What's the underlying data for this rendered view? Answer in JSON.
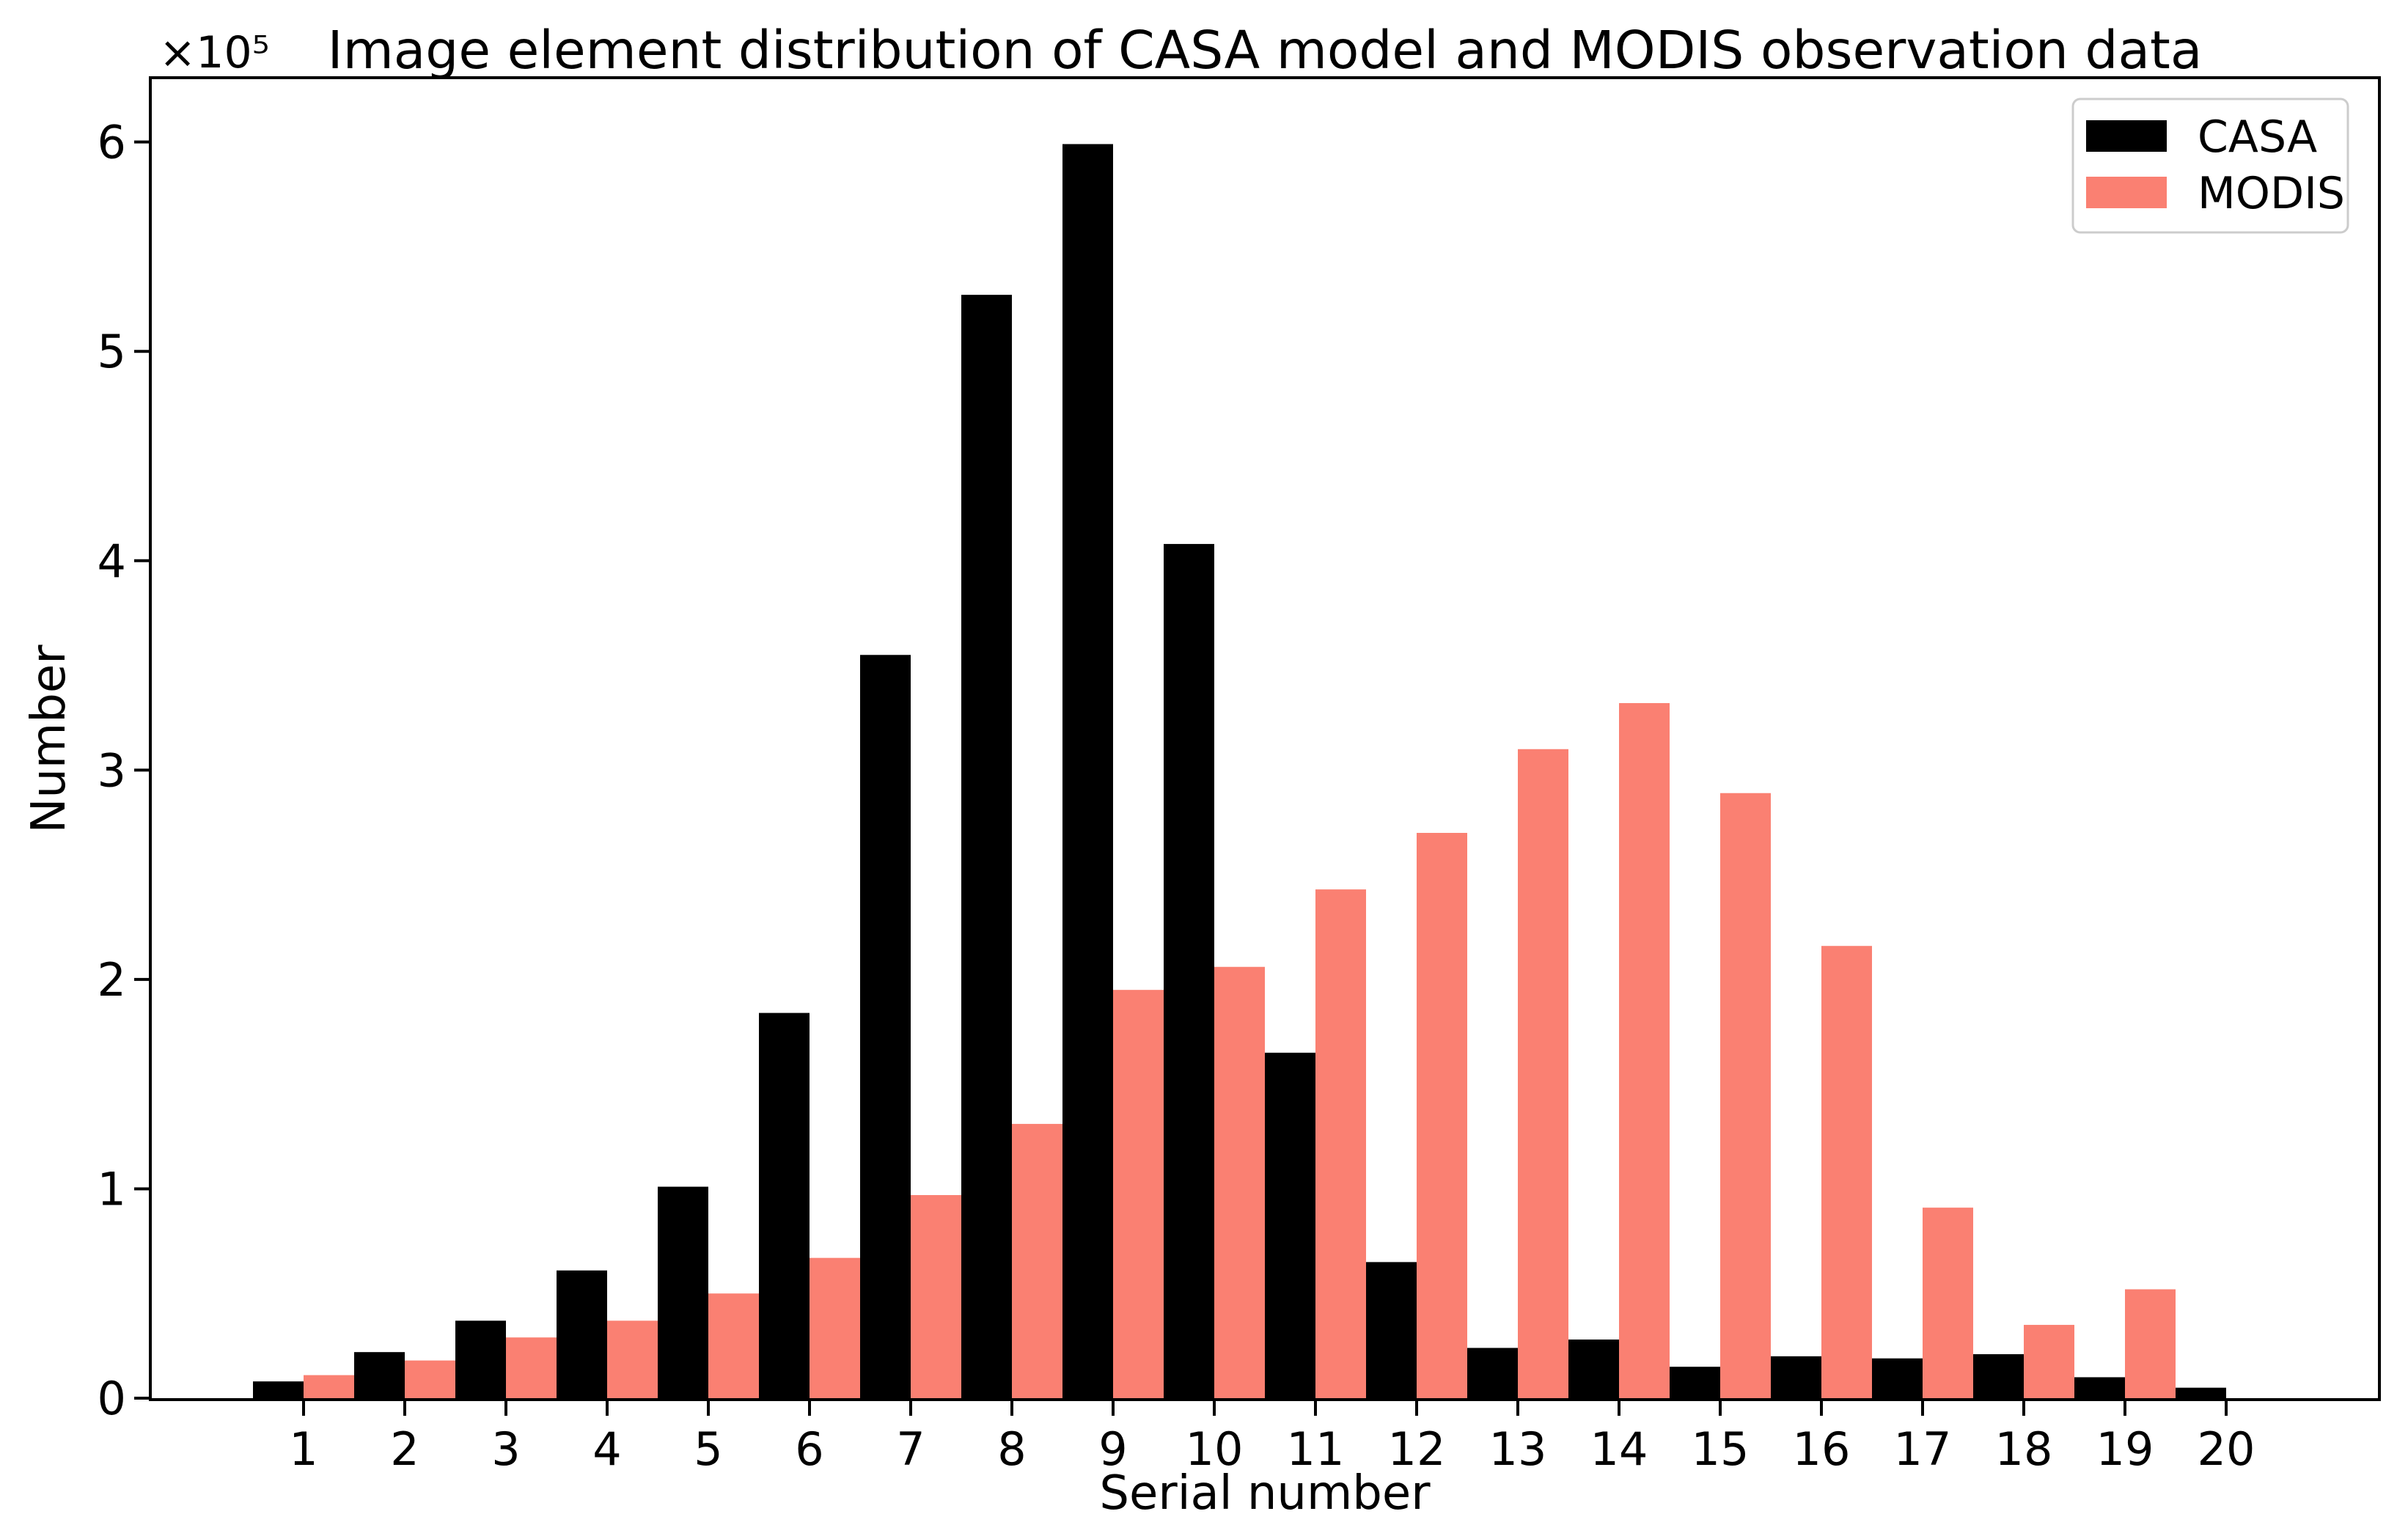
{
  "figure": {
    "background": "#ffffff",
    "text_color": "#000000",
    "spine_color": "#000000",
    "legend_border_color": "#cccccc"
  },
  "chart_data": {
    "type": "bar",
    "title": "Image element distribution of CASA model and MODIS observation data",
    "xlabel": "Serial number",
    "ylabel": "Number",
    "y_offset_text": "×10⁵",
    "value_unit": "1e5",
    "categories": [
      1,
      2,
      3,
      4,
      5,
      6,
      7,
      8,
      9,
      10,
      11,
      12,
      13,
      14,
      15,
      16,
      17,
      18,
      19,
      20
    ],
    "series": [
      {
        "name": "CASA",
        "color": "#000000",
        "values": [
          0.08,
          0.22,
          0.37,
          0.61,
          1.01,
          1.84,
          3.55,
          5.27,
          5.99,
          4.08,
          1.65,
          0.65,
          0.24,
          0.28,
          0.15,
          0.2,
          0.19,
          0.21,
          0.1,
          0.05
        ]
      },
      {
        "name": "MODIS",
        "color": "#FA8072",
        "values": [
          0.11,
          0.18,
          0.29,
          0.37,
          0.5,
          0.67,
          0.97,
          1.31,
          1.95,
          2.06,
          2.43,
          2.7,
          3.1,
          3.32,
          2.89,
          2.16,
          0.91,
          0.35,
          0.52,
          0.0
        ]
      }
    ],
    "yticks": [
      0,
      1,
      2,
      3,
      4,
      5,
      6
    ],
    "ylim": [
      0,
      6.3
    ],
    "xlim": [
      -0.5,
      21.5
    ],
    "bar_width": 0.5,
    "grid": false,
    "legend_position": "upper right"
  }
}
